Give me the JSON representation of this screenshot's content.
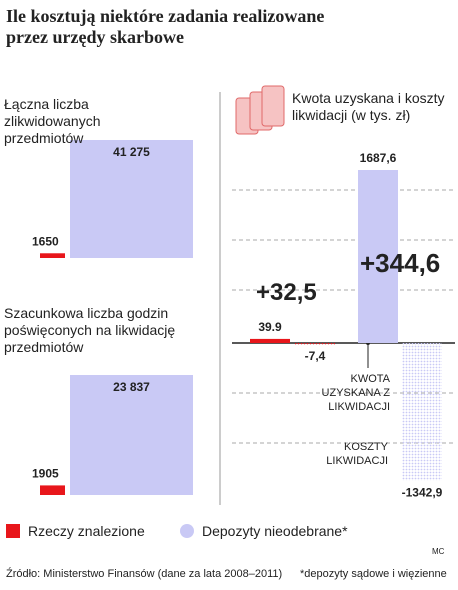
{
  "title": "Ile kosztują niektóre zadania realizowane przez urzędy skarbowe",
  "legend": [
    {
      "name": "Rzeczy znalezione",
      "color": "#e8161b"
    },
    {
      "name": "Depozyty nieodebrane*",
      "color": "#c9c9f5"
    }
  ],
  "source": "Źródło: Ministerstwo Finansów (dane za lata 2008–2011)",
  "footnote": "*depozyty sądowe i więzienne",
  "credit": "MC",
  "chart_data": [
    {
      "type": "bar",
      "title": "Łączna liczba zlikwidowanych przedmiotów",
      "values": [
        1650,
        41275
      ],
      "value_labels": [
        "1650",
        "41 275"
      ],
      "colors": [
        "#e8161b",
        "#c9c9f5"
      ]
    },
    {
      "type": "bar",
      "title": "Szacunkowa liczba godzin poświęconych na likwidację przedmiotów",
      "values": [
        1905,
        23837
      ],
      "value_labels": [
        "1905",
        "23 837"
      ],
      "colors": [
        "#e8161b",
        "#c9c9f5"
      ]
    },
    {
      "type": "diverging",
      "title": "Kwota uzyskana i koszty likwidacji (w tys. zł)",
      "income": [
        39.9,
        1687.6
      ],
      "income_labels": [
        "39.9",
        "1687,6"
      ],
      "costs": [
        -7.4,
        -1342.9
      ],
      "cost_labels": [
        "-7,4",
        "-1342,9"
      ],
      "net": [
        32.5,
        344.6
      ],
      "net_labels": [
        "+32,5",
        "+344,6"
      ],
      "colors": [
        "#e8161b",
        "#c9c9f5"
      ],
      "annotations": [
        "KWOTA UZYSKANA Z LIKWIDACJI",
        "KOSZTY LIKWIDACJI"
      ]
    }
  ]
}
